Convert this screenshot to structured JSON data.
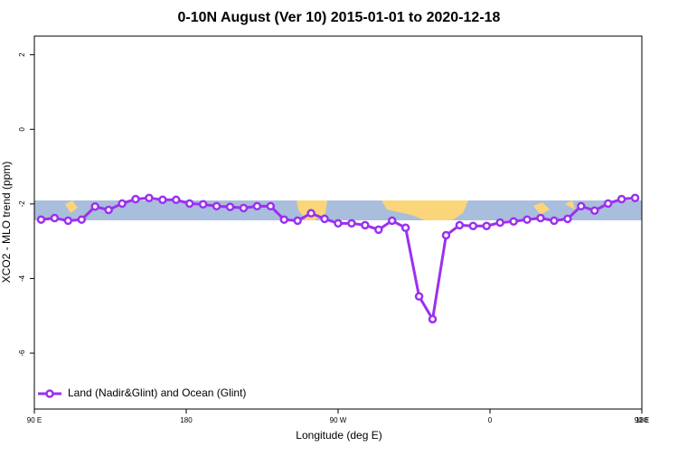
{
  "chart_data": {
    "type": "line",
    "title": "0-10N August (Ver 10)   2015-01-01 to 2020-12-18",
    "xlabel": "Longitude (deg E)",
    "ylabel": "XCO2 - MLO trend (ppm)",
    "x": [
      94,
      102,
      110,
      118,
      126,
      134,
      142,
      150,
      158,
      166,
      174,
      182,
      190,
      198,
      206,
      214,
      222,
      230,
      238,
      246,
      254,
      262,
      270,
      278,
      286,
      294,
      302,
      310,
      318,
      326,
      334,
      342,
      350,
      358,
      366,
      374,
      382,
      390,
      398,
      406,
      414,
      422,
      430,
      438,
      446
    ],
    "series": [
      {
        "name": "Land (Nadir&Glint) and Ocean (Glint)",
        "color": "#9b30f0",
        "values": [
          -2.42,
          -2.38,
          -2.45,
          -2.42,
          -2.07,
          -2.16,
          -1.99,
          -1.87,
          -1.84,
          -1.89,
          -1.89,
          -1.99,
          -2.01,
          -2.06,
          -2.08,
          -2.11,
          -2.06,
          -2.06,
          -2.42,
          -2.45,
          -2.25,
          -2.4,
          -2.52,
          -2.52,
          -2.57,
          -2.69,
          -2.45,
          -2.64,
          -4.48,
          -5.09,
          -2.84,
          -2.57,
          -2.59,
          -2.59,
          -2.5,
          -2.47,
          -2.42,
          -2.38,
          -2.45,
          -2.4,
          -2.06,
          -2.18,
          -1.99,
          -1.87,
          -1.84
        ]
      }
    ],
    "xlim": [
      90,
      450
    ],
    "xticks": [
      {
        "value": 90,
        "label": "90 E"
      },
      180,
      {
        "value": 270,
        "label": "90 W"
      },
      {
        "value": 360,
        "label": "0"
      },
      {
        "value": 450,
        "label": "90 E"
      },
      {
        "value": 540,
        "label": "180"
      }
    ],
    "ylim": [
      -7.5,
      2.5
    ],
    "yticks": [
      2,
      0,
      -2,
      -4,
      -6
    ],
    "legend": "bottom-left"
  }
}
